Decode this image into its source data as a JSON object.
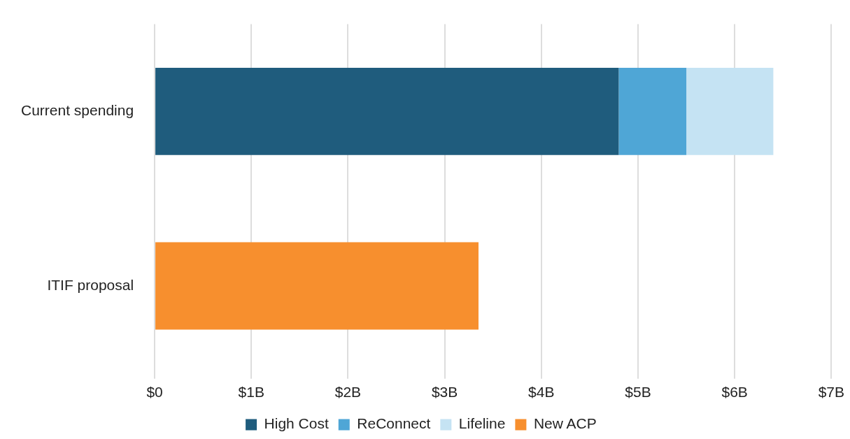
{
  "chart_data": {
    "type": "bar",
    "orientation": "horizontal",
    "stacked": true,
    "categories": [
      "Current spending",
      "ITIF proposal"
    ],
    "series": [
      {
        "name": "High Cost",
        "color": "#1f5c7d",
        "values": [
          4.8,
          null
        ]
      },
      {
        "name": "ReConnect",
        "color": "#4fa6d6",
        "values": [
          0.7,
          null
        ]
      },
      {
        "name": "Lifeline",
        "color": "#c5e3f3",
        "values": [
          0.9,
          null
        ]
      },
      {
        "name": "New ACP",
        "color": "#f78f2e",
        "values": [
          null,
          3.35
        ]
      }
    ],
    "xlim": [
      0,
      7
    ],
    "xticks": [
      {
        "value": 0,
        "label": "$0"
      },
      {
        "value": 1,
        "label": "$1B"
      },
      {
        "value": 2,
        "label": "$2B"
      },
      {
        "value": 3,
        "label": "$3B"
      },
      {
        "value": 4,
        "label": "$4B"
      },
      {
        "value": 5,
        "label": "$5B"
      },
      {
        "value": 6,
        "label": "$6B"
      },
      {
        "value": 7,
        "label": "$7B"
      }
    ],
    "grid": "x",
    "legend": "bottom"
  }
}
